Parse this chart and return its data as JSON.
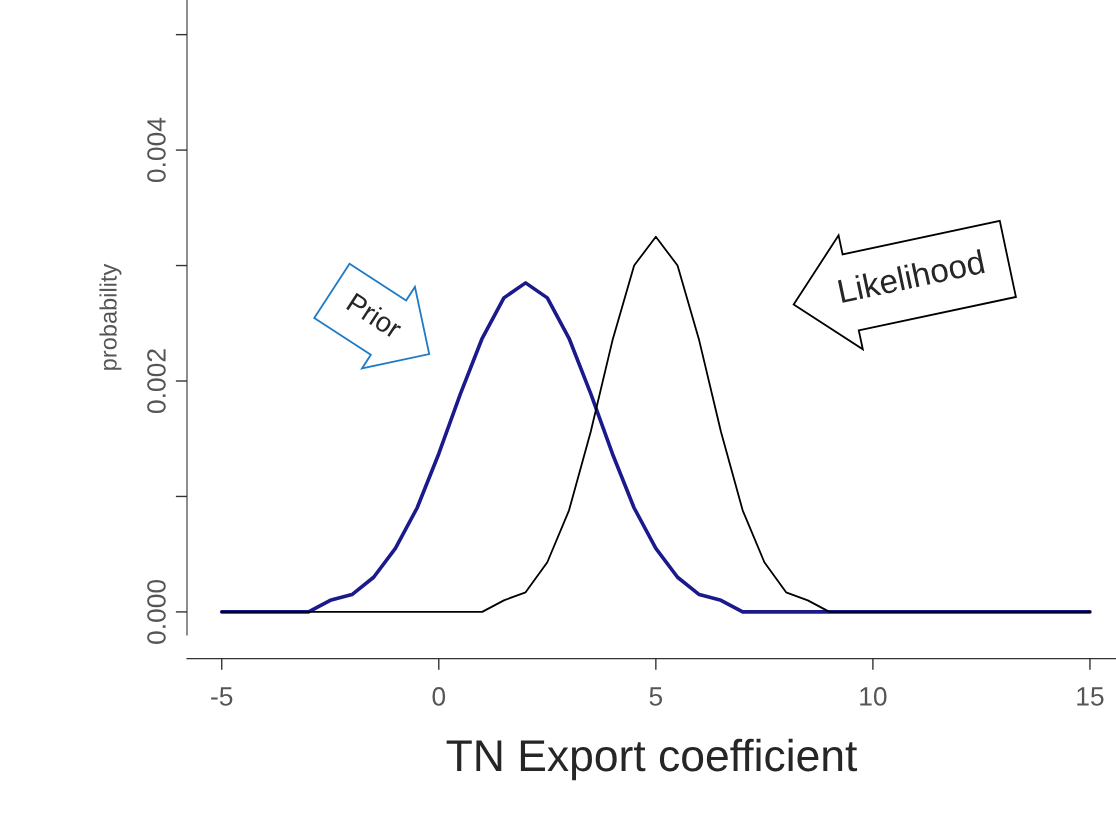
{
  "chart_data": {
    "type": "line",
    "xlabel": "TN Export coefficient",
    "ylabel": "probability",
    "series": [
      {
        "color": "#1a1a8c",
        "x": [
          -5,
          -4.5,
          -4,
          -3.5,
          -3,
          -2.5,
          -2,
          -1.5,
          -1,
          -0.5,
          0,
          0.5,
          1,
          1.5,
          2,
          2.5,
          3,
          3.5,
          4,
          4.5,
          5,
          5.5,
          6,
          6.5,
          7,
          7.5,
          8,
          8.5,
          9,
          9.5,
          10,
          10.5,
          11,
          11.5,
          12,
          12.5,
          13,
          13.5,
          14,
          14.5,
          15
        ],
        "values": [
          0,
          0,
          0,
          0,
          0,
          0.0001,
          0.00015,
          0.0003,
          0.00055,
          0.0009,
          0.00137,
          0.00189,
          0.00237,
          0.00272,
          0.00285,
          0.00272,
          0.00237,
          0.00189,
          0.00137,
          0.0009,
          0.00055,
          0.0003,
          0.00015,
          0.0001,
          0,
          0,
          0,
          0,
          0,
          0,
          0,
          0,
          0,
          0,
          0,
          0,
          0,
          0,
          0,
          0,
          0
        ]
      },
      {
        "color": "#000000",
        "x": [
          -5,
          -4.5,
          -4,
          -3.5,
          -3,
          -2.5,
          -2,
          -1.5,
          -1,
          -0.5,
          0,
          0.5,
          1,
          1.5,
          2,
          2.5,
          3,
          3.5,
          4,
          4.5,
          5,
          5.5,
          6,
          6.5,
          7,
          7.5,
          8,
          8.5,
          9,
          9.5,
          10,
          10.5,
          11,
          11.5,
          12,
          12.5,
          13,
          13.5,
          14,
          14.5,
          15
        ],
        "values": [
          0,
          0,
          0,
          0,
          0,
          0,
          0,
          0,
          0,
          0,
          0,
          0,
          0,
          0.0001,
          0.00017,
          0.00043,
          0.00088,
          0.00156,
          0.00235,
          0.003,
          0.00325,
          0.003,
          0.00235,
          0.00156,
          0.00088,
          0.00043,
          0.00017,
          0.0001,
          0,
          0,
          0,
          0,
          0,
          0,
          0,
          0,
          0,
          0,
          0,
          0,
          0
        ]
      }
    ],
    "xlim": [
      -5.8,
      15.6
    ],
    "ylim": [
      -0.0002,
      0.0053
    ],
    "xticks": [
      -5,
      0,
      5,
      10,
      15
    ],
    "yticks": [
      {
        "value": 0,
        "label": "0.000"
      },
      {
        "value": 0.001,
        "label": null
      },
      {
        "value": 0.002,
        "label": "0.002"
      },
      {
        "value": 0.003,
        "label": null
      },
      {
        "value": 0.004,
        "label": "0.004"
      },
      {
        "value": 0.005,
        "label": null
      }
    ],
    "grid": false,
    "legend": false,
    "marker": "none",
    "line_style": "solid",
    "annotations": [
      "Prior",
      "Likelihood"
    ]
  }
}
